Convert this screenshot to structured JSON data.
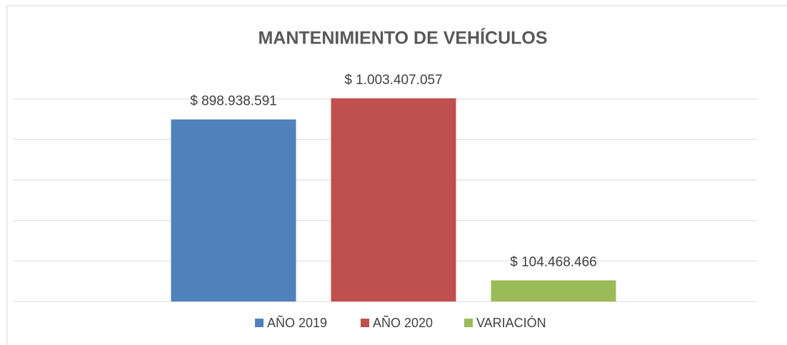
{
  "chart_data": {
    "type": "bar",
    "title": "MANTENIMIENTO DE VEHÍCULOS",
    "categories": [
      null
    ],
    "series": [
      {
        "name": "AÑO 2019",
        "color": "#4f81bd",
        "values": [
          898938591
        ],
        "value_labels": [
          "$ 898.938.591"
        ]
      },
      {
        "name": "AÑO 2020",
        "color": "#c0504d",
        "values": [
          1003407057
        ],
        "value_labels": [
          "$ 1.003.407.057"
        ]
      },
      {
        "name": "VARIACIÓN",
        "color": "#9bbb59",
        "values": [
          104468466
        ],
        "value_labels": [
          "$ 104.468.466"
        ]
      }
    ],
    "ylim": [
      0,
      1200000000
    ],
    "yticks": [
      0,
      200000000,
      400000000,
      600000000,
      800000000,
      1000000000
    ],
    "grid": true,
    "legend": "bottom"
  }
}
